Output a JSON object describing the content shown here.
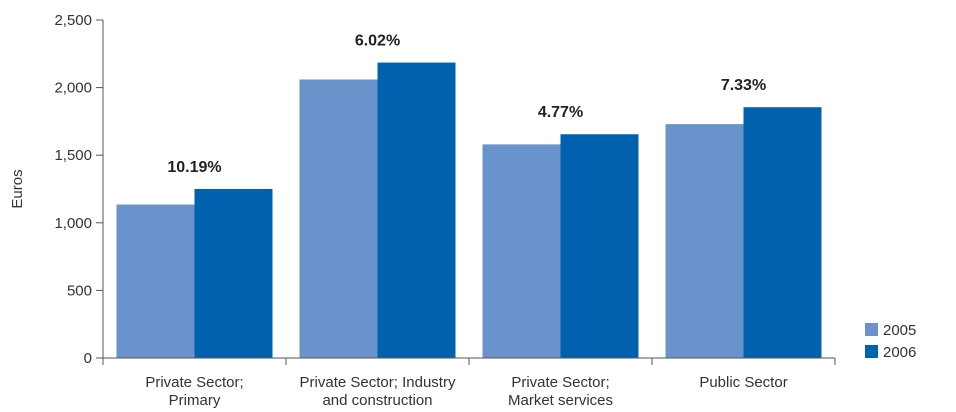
{
  "chart_data": {
    "type": "bar",
    "ylabel": "Euros",
    "xlabel": "",
    "ylim": [
      0,
      2500
    ],
    "yticks": [
      0,
      500,
      1000,
      1500,
      2000,
      2500
    ],
    "ytick_labels": [
      "0",
      "500",
      "1,000",
      "1,500",
      "2,000",
      "2,500"
    ],
    "categories": [
      [
        "Private Sector;",
        "Primary"
      ],
      [
        "Private Sector; Industry",
        "and construction"
      ],
      [
        "Private Sector;",
        "Market services"
      ],
      [
        "Public Sector"
      ]
    ],
    "series": [
      {
        "name": "2005",
        "color": "#6a93cb",
        "values": [
          1135,
          2060,
          1580,
          1730
        ]
      },
      {
        "name": "2006",
        "color": "#0062ae",
        "values": [
          1250,
          2185,
          1655,
          1855
        ]
      }
    ],
    "annotations": [
      "10.19%",
      "6.02%",
      "4.77%",
      "7.33%"
    ],
    "legend_position": "bottom-right",
    "grid": false
  }
}
